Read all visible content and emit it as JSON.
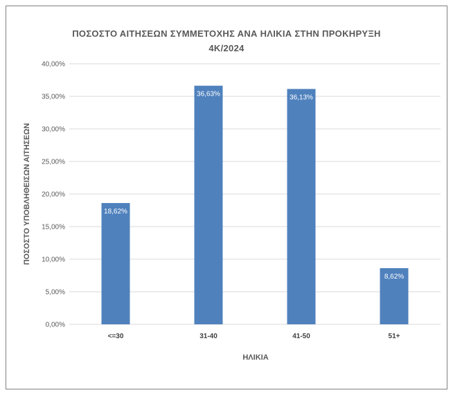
{
  "chart_data": {
    "type": "bar",
    "title_lines": [
      "ΠΟΣΟΣΤΟ ΑΙΤΗΣΕΩΝ ΣΥΜΜΕΤΟΧΗΣ ΑΝΑ ΗΛΙΚΙΑ ΣΤΗΝ ΠΡΟΚΗΡΥΞΗ",
      "4Κ/2024"
    ],
    "xlabel": "ΗΛΙΚΙΑ",
    "ylabel": "ΠΟΣΟΣΤΟ ΥΠΟΒΛΗΘΕΙΣΩΝ ΑΙΤΗΣΕΩΝ",
    "categories": [
      "<=30",
      "31-40",
      "41-50",
      "51+"
    ],
    "values": [
      18.62,
      36.63,
      36.13,
      8.62
    ],
    "data_labels": [
      "18,62%",
      "36,63%",
      "36,13%",
      "8,62%"
    ],
    "ylim": [
      0,
      40
    ],
    "y_ticks": [
      0,
      5,
      10,
      15,
      20,
      25,
      30,
      35,
      40
    ],
    "y_tick_labels": [
      "0,00%",
      "5,00%",
      "10,00%",
      "15,00%",
      "20,00%",
      "25,00%",
      "30,00%",
      "35,00%",
      "40,00%"
    ],
    "grid": true,
    "legend": "none",
    "bar_color": "#4f81bd",
    "grid_color": "#d9d9d9"
  }
}
